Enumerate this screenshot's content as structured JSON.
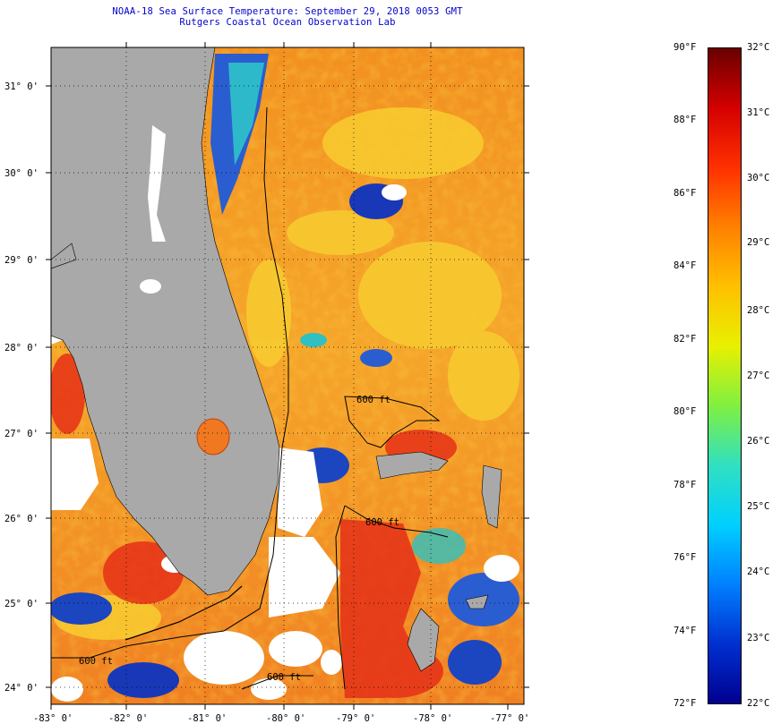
{
  "header": {
    "title": "NOAA-18 Sea Surface Temperature:  September 29, 2018 0053 GMT",
    "subtitle": "Rutgers Coastal Ocean Observation Lab"
  },
  "map": {
    "lon_ticks": [
      "-83° 0'",
      "-82° 0'",
      "-81° 0'",
      "-80° 0'",
      "-79° 0'",
      "-78° 0'",
      "-77° 0'"
    ],
    "lat_ticks": [
      "31° 0'",
      "30° 0'",
      "29° 0'",
      "28° 0'",
      "27° 0'",
      "26° 0'",
      "25° 0'",
      "24° 0'"
    ],
    "contour_labels": [
      "600 ft",
      "600 ft",
      "600 ft",
      "600 ft"
    ],
    "colors": {
      "land": "#a9a9a9",
      "cloud": "#ffffff",
      "warm": "#f07a18",
      "hot": "#e02010",
      "mild": "#f8c820",
      "cool": "#30d0d0",
      "cold": "#0a2fb8"
    }
  },
  "colorbar": {
    "fahrenheit": [
      "90°F",
      "88°F",
      "86°F",
      "84°F",
      "82°F",
      "80°F",
      "78°F",
      "76°F",
      "74°F",
      "72°F"
    ],
    "celsius": [
      "32°C",
      "31°C",
      "30°C",
      "29°C",
      "28°C",
      "27°C",
      "26°C",
      "25°C",
      "24°C",
      "23°C",
      "22°C"
    ],
    "gradient": [
      "#6a0000",
      "#d40000",
      "#ff3000",
      "#ff8000",
      "#ffc000",
      "#e8f000",
      "#80f040",
      "#30e0c0",
      "#00d0ff",
      "#0080ff",
      "#0030d0",
      "#000090"
    ]
  }
}
